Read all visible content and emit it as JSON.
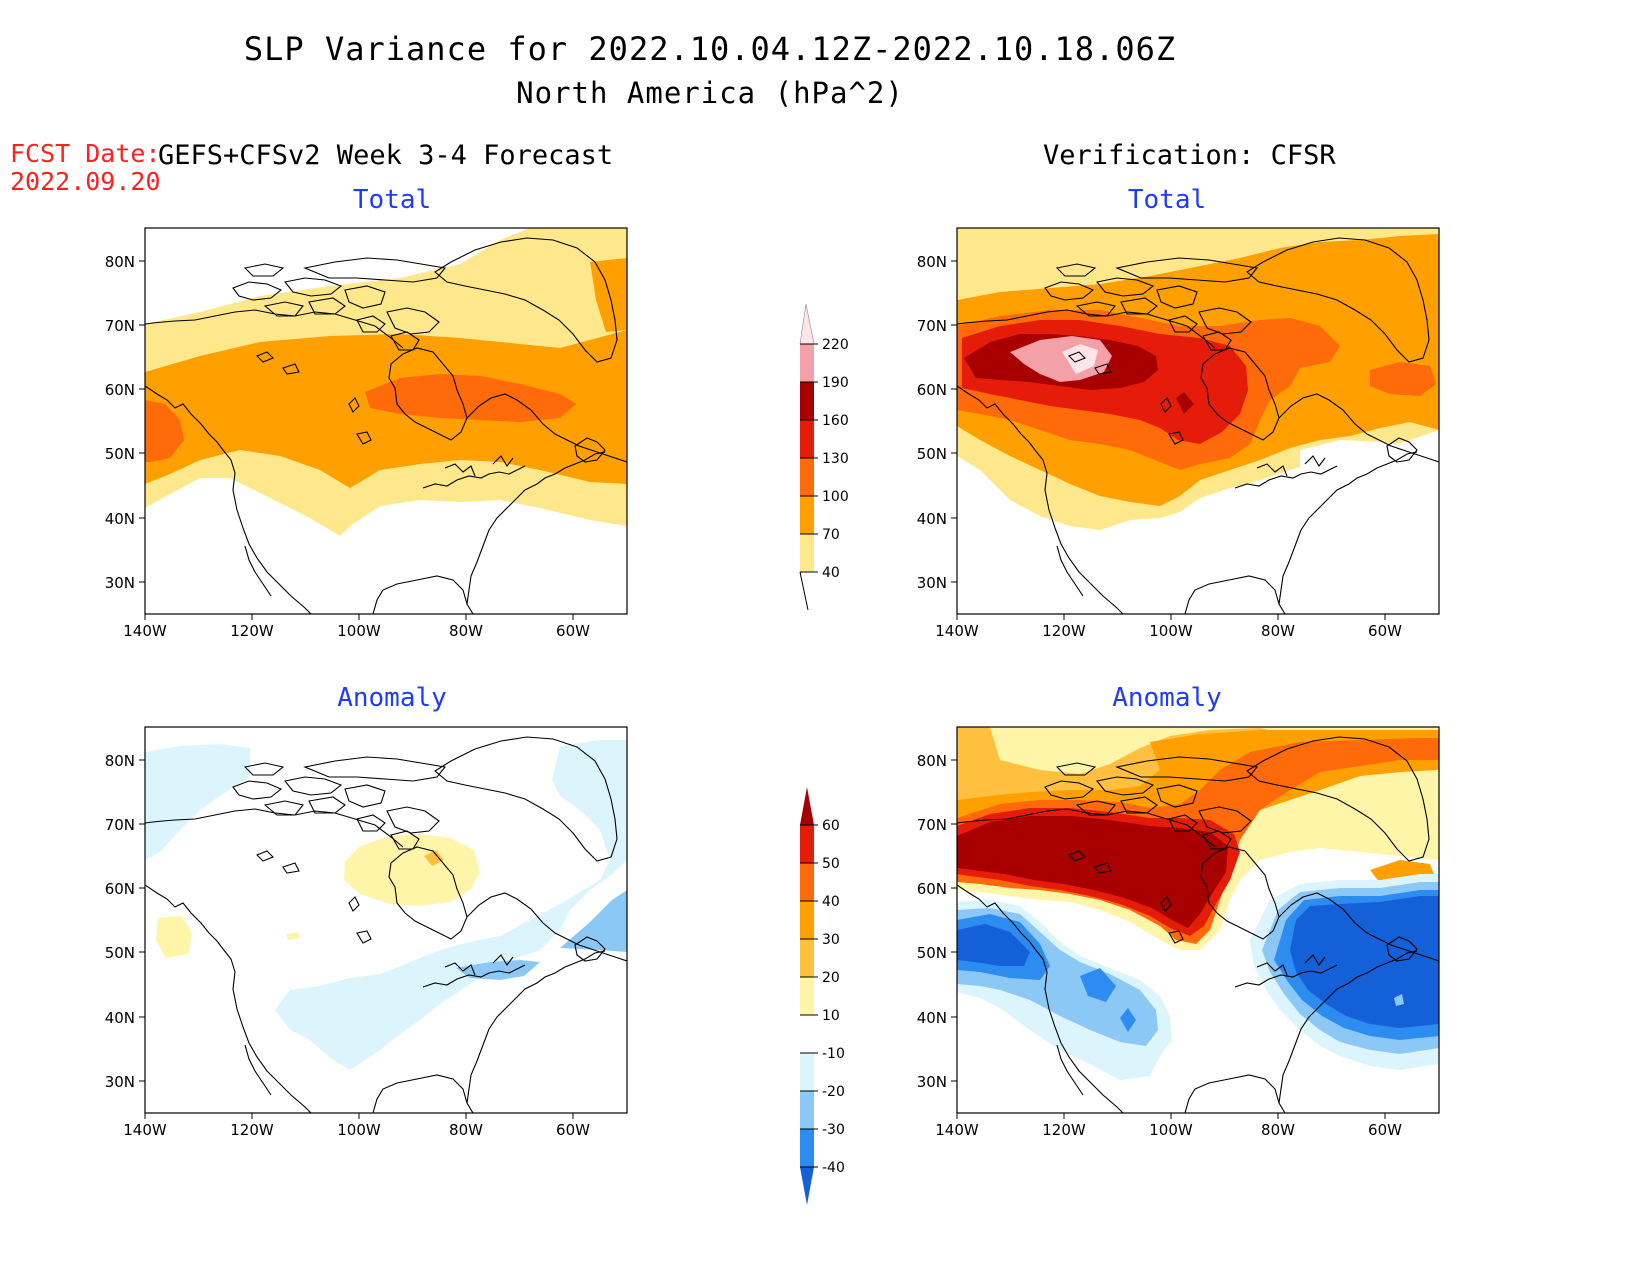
{
  "header": {
    "title": "SLP Variance for 2022.10.04.12Z-2022.10.18.06Z",
    "subtitle": "North America (hPa^2)",
    "fcst_label": "FCST Date:",
    "fcst_date": "2022.09.20",
    "left_column": "GEFS+CFSv2 Week 3-4 Forecast",
    "right_column": "Verification: CFSR"
  },
  "panels": {
    "fcst_total": "Total",
    "fcst_anom": "Anomaly",
    "ver_total": "Total",
    "ver_anom": "Anomaly"
  },
  "axes": {
    "lat_labels": [
      "80N",
      "70N",
      "60N",
      "50N",
      "40N",
      "30N"
    ],
    "lon_labels": [
      "140W",
      "120W",
      "100W",
      "80W",
      "60W"
    ]
  },
  "colorbars": {
    "total": {
      "levels": [
        "40",
        "70",
        "100",
        "130",
        "160",
        "190",
        "220"
      ],
      "colors": [
        "#ffe88c",
        "#ffa000",
        "#ff6a0a",
        "#e61c0a",
        "#a80000",
        "#f4a0a8",
        "#ffe4e8"
      ]
    },
    "anomaly": {
      "levels": [
        "-40",
        "-30",
        "-20",
        "-10",
        "10",
        "20",
        "30",
        "40",
        "50",
        "60"
      ],
      "colors": [
        "#1460d8",
        "#2d8cf0",
        "#8cc8f5",
        "#dcf5fc",
        "#ffffff",
        "#fff5a8",
        "#ffc040",
        "#ffa000",
        "#ff6a0a",
        "#e61c0a",
        "#a80000"
      ]
    }
  },
  "colors": {
    "fcst_red": "#ff2020",
    "panel_title_blue": "#1e3cff"
  }
}
